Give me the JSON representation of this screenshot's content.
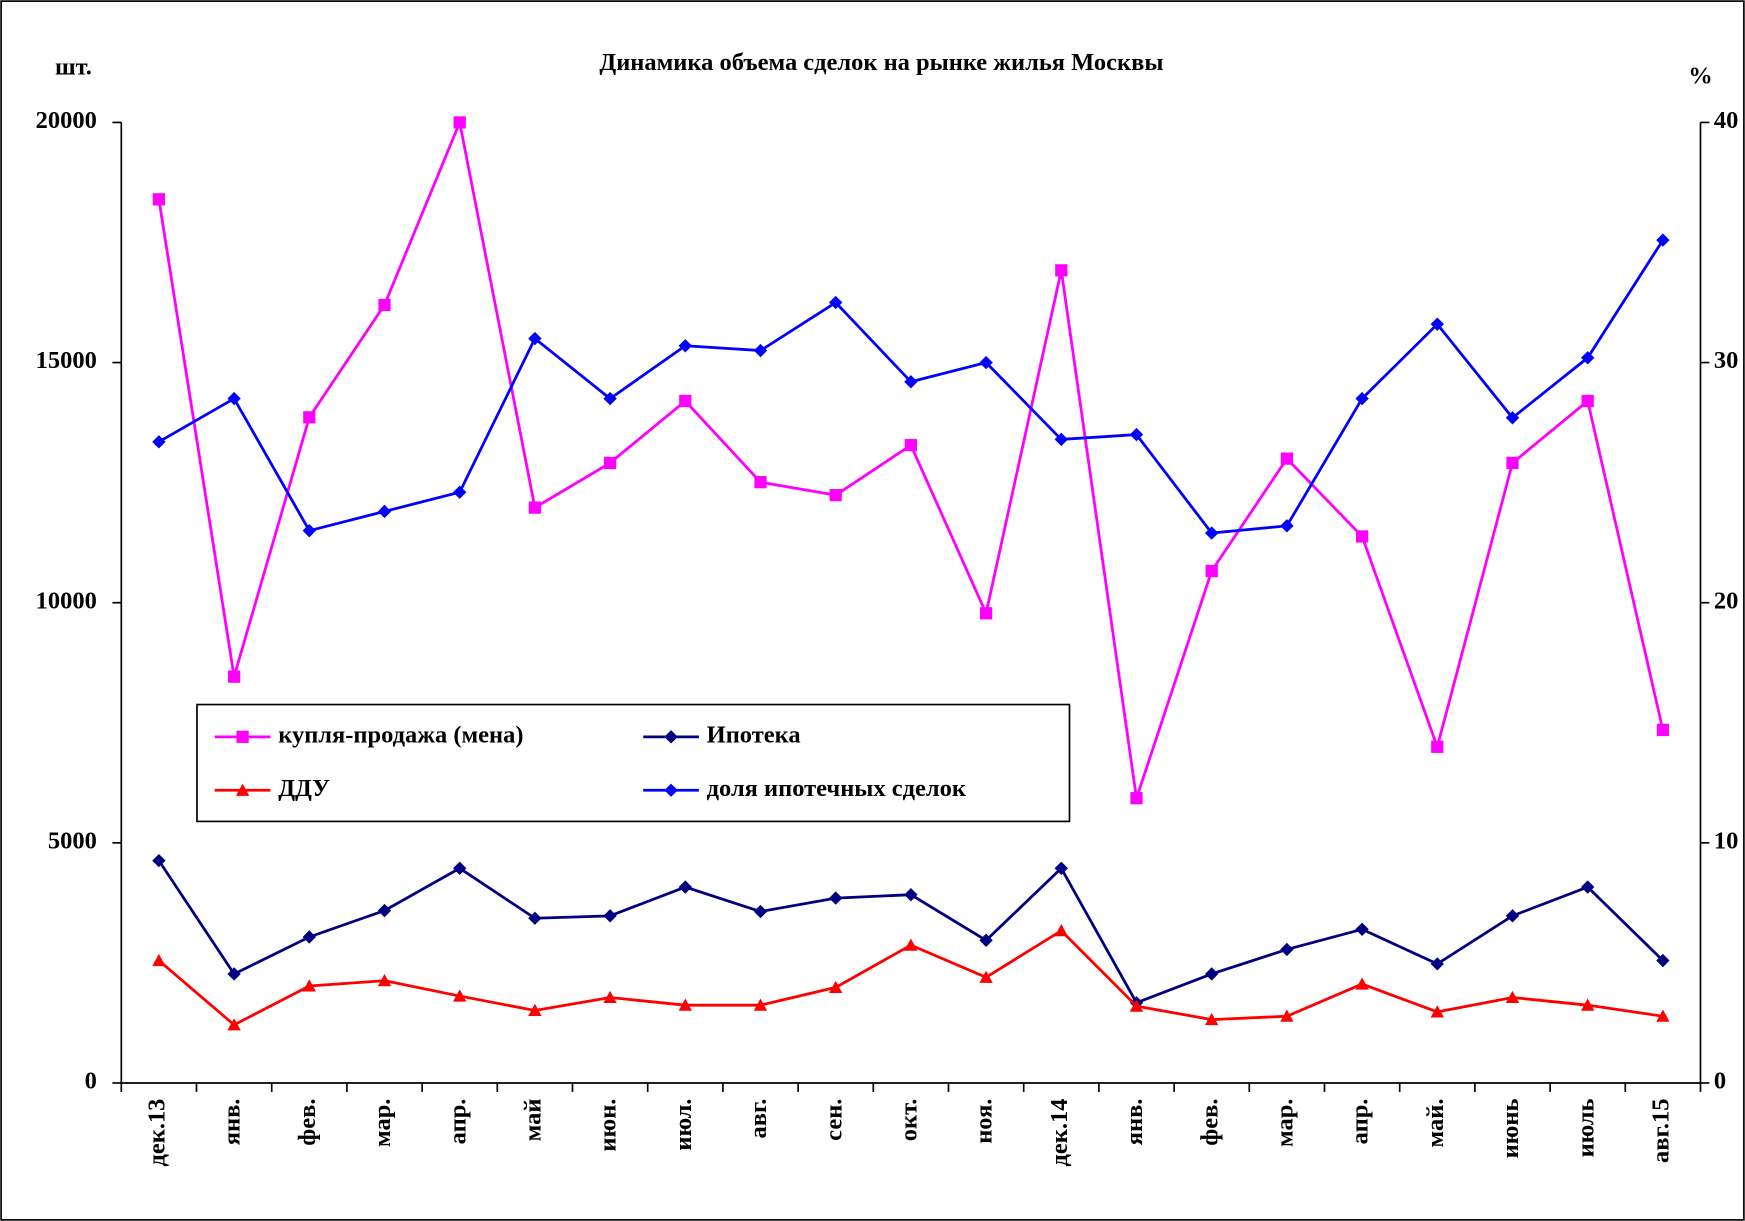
{
  "chart_data": {
    "type": "line",
    "title": "Динамика объема сделок на рынке жилья Москвы",
    "ylabel": "шт.",
    "y2label": "%",
    "categories": [
      "дек.13",
      "янв.",
      "фев.",
      "мар.",
      "апр.",
      "май",
      "июн.",
      "июл.",
      "авг.",
      "сен.",
      "окт.",
      "ноя.",
      "дек.14",
      "янв.",
      "фев.",
      "мар.",
      "апр.",
      "май.",
      "июнь",
      "июль",
      "авг.15"
    ],
    "ylim": [
      0,
      20000
    ],
    "yticks": [
      0,
      5000,
      10000,
      15000,
      20000
    ],
    "y2lim": [
      0,
      40
    ],
    "y2ticks": [
      0,
      10,
      20,
      30,
      40
    ],
    "series": [
      {
        "name": "купля-продажа (мена)",
        "color": "#ff00ff",
        "marker": "square",
        "values": [
          18400,
          8460,
          13860,
          16200,
          20000,
          11980,
          12910,
          14200,
          12510,
          12240,
          13280,
          9780,
          16920,
          5930,
          10660,
          13000,
          11380,
          7000,
          12910,
          14200,
          7350
        ]
      },
      {
        "name": "Ипотека",
        "color": "#000080",
        "marker": "diamond",
        "values": [
          4630,
          2270,
          3040,
          3590,
          4470,
          3430,
          3480,
          4080,
          3570,
          3850,
          3920,
          2970,
          4470,
          1670,
          2270,
          2780,
          3200,
          2480,
          3480,
          4080,
          2550
        ]
      },
      {
        "name": "ДДУ",
        "color": "#ff0000",
        "marker": "triangle",
        "values": [
          2550,
          1210,
          2020,
          2130,
          1810,
          1510,
          1780,
          1620,
          1620,
          1990,
          2870,
          2200,
          3170,
          1600,
          1320,
          1390,
          2060,
          1480,
          1780,
          1620,
          1390
        ]
      },
      {
        "name": "доля ипотечных сделок",
        "color": "#0000ff",
        "marker": "diamond",
        "axis": "y2",
        "values": [
          26.7,
          28.5,
          23.0,
          23.8,
          24.6,
          31.0,
          28.5,
          30.7,
          30.5,
          32.5,
          29.2,
          30.0,
          26.8,
          27.0,
          22.9,
          23.2,
          28.5,
          31.6,
          27.7,
          30.2,
          35.1
        ]
      }
    ]
  }
}
